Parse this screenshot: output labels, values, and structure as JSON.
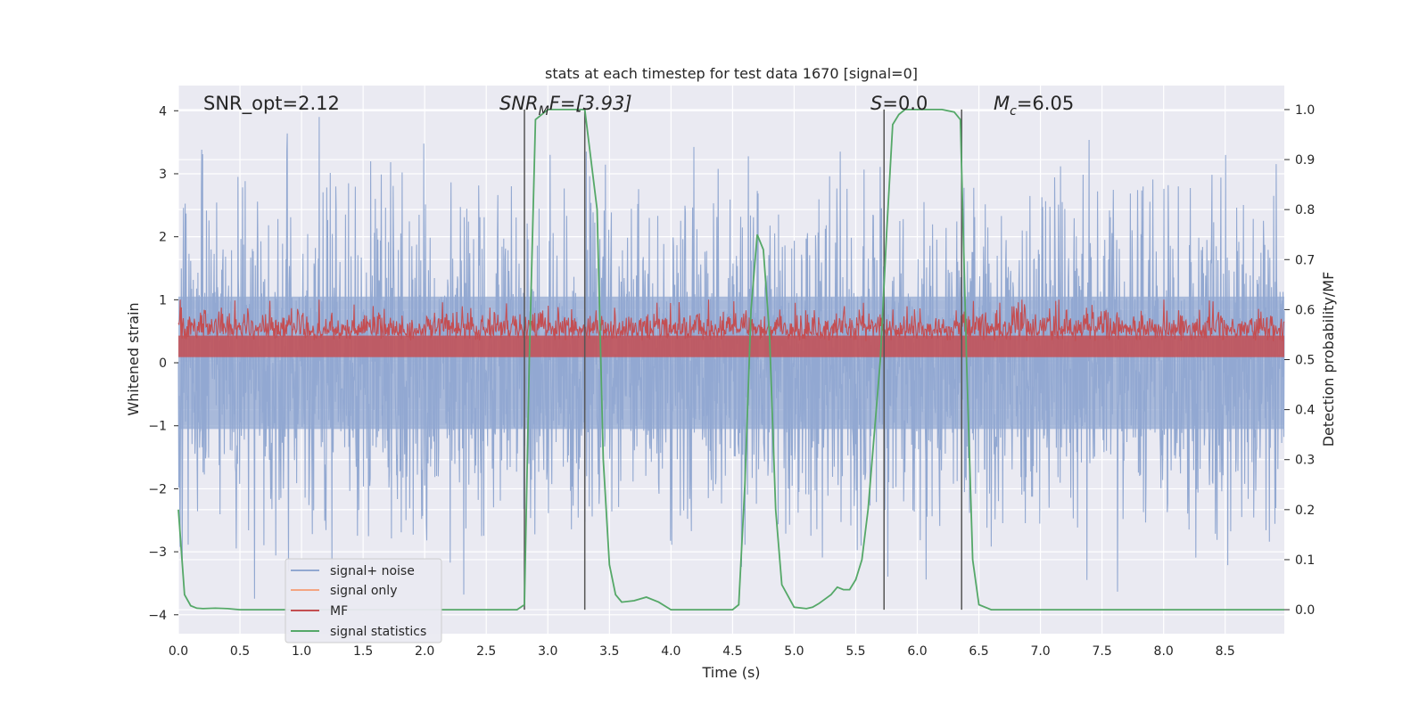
{
  "chart_data": {
    "type": "line",
    "title": "stats at each timestep for test data 1670 [signal=0]",
    "xlabel": "Time (s)",
    "ylabel": "Whitened strain",
    "y2label": "Detection probability/MF",
    "xlim": [
      0.0,
      8.98
    ],
    "ylim": [
      -4.3,
      4.4
    ],
    "y2lim": [
      -0.048,
      1.048
    ],
    "x_ticks": [
      0.0,
      0.5,
      1.0,
      1.5,
      2.0,
      2.5,
      3.0,
      3.5,
      4.0,
      4.5,
      5.0,
      5.5,
      6.0,
      6.5,
      7.0,
      7.5,
      8.0,
      8.5
    ],
    "x_tick_labels": [
      "0.0",
      "0.5",
      "1.0",
      "1.5",
      "2.0",
      "2.5",
      "3.0",
      "3.5",
      "4.0",
      "4.5",
      "5.0",
      "5.5",
      "6.0",
      "6.5",
      "7.0",
      "7.5",
      "8.0",
      "8.5"
    ],
    "y_ticks": [
      -4,
      -3,
      -2,
      -1,
      0,
      1,
      2,
      3,
      4
    ],
    "y_tick_labels": [
      "−4",
      "−3",
      "−2",
      "−1",
      "0",
      "1",
      "2",
      "3",
      "4"
    ],
    "y2_ticks": [
      0.0,
      0.1,
      0.2,
      0.3,
      0.4,
      0.5,
      0.6,
      0.7,
      0.8,
      0.9,
      1.0
    ],
    "y2_tick_labels": [
      "0.0",
      "0.1",
      "0.2",
      "0.3",
      "0.4",
      "0.5",
      "0.6",
      "0.7",
      "0.8",
      "0.9",
      "1.0"
    ],
    "grid": true,
    "legend_placement": "lower-left",
    "annotations": {
      "snr_opt": "SNR_opt=2.12",
      "snr_mf_sym": "SNR",
      "snr_mf_sub": "M",
      "snr_mf_rest": "F=[3.93]",
      "s_sym": "S",
      "s_rest": "=0.0",
      "mc_sym": "M",
      "mc_sub": "c",
      "mc_rest": "=6.05"
    },
    "vertical_markers_s": [
      2.81,
      3.3,
      5.73,
      6.36
    ],
    "series": [
      {
        "name": "signal+ noise",
        "color": "#92a8d1",
        "axis": "left",
        "kind": "noise",
        "x_range": [
          0.0,
          8.98
        ],
        "envelope_min": -3.9,
        "envelope_max": 3.9
      },
      {
        "name": "signal only",
        "color": "#f4a582",
        "axis": "left",
        "kind": "flat",
        "values": []
      },
      {
        "name": "MF",
        "color": "#c44e52",
        "axis": "right",
        "kind": "noise",
        "x_range": [
          0.0,
          8.98
        ],
        "envelope_min": 0.5,
        "envelope_max": 0.62
      },
      {
        "name": "signal statistics",
        "color": "#55a868",
        "axis": "right",
        "kind": "line",
        "x": [
          0.0,
          0.05,
          0.1,
          0.15,
          0.2,
          0.3,
          0.4,
          0.5,
          1.0,
          1.5,
          2.0,
          2.5,
          2.75,
          2.81,
          2.85,
          2.9,
          3.0,
          3.1,
          3.2,
          3.3,
          3.35,
          3.4,
          3.45,
          3.5,
          3.55,
          3.6,
          3.7,
          3.8,
          3.9,
          4.0,
          4.2,
          4.4,
          4.5,
          4.55,
          4.6,
          4.65,
          4.7,
          4.75,
          4.8,
          4.85,
          4.9,
          5.0,
          5.1,
          5.15,
          5.2,
          5.3,
          5.35,
          5.4,
          5.45,
          5.5,
          5.55,
          5.6,
          5.65,
          5.7,
          5.75,
          5.8,
          5.85,
          5.9,
          6.0,
          6.1,
          6.2,
          6.3,
          6.35,
          6.4,
          6.45,
          6.5,
          6.6,
          7.0,
          7.5,
          8.0,
          8.5,
          8.98
        ],
        "values": [
          0.2,
          0.03,
          0.008,
          0.003,
          0.002,
          0.003,
          0.002,
          0.0,
          0.0,
          0.0,
          0.0,
          0.0,
          0.0,
          0.01,
          0.5,
          0.98,
          1.0,
          1.0,
          1.0,
          1.0,
          0.9,
          0.8,
          0.3,
          0.09,
          0.03,
          0.015,
          0.018,
          0.025,
          0.015,
          0.0,
          0.0,
          0.0,
          0.0,
          0.01,
          0.25,
          0.6,
          0.75,
          0.72,
          0.55,
          0.2,
          0.05,
          0.005,
          0.002,
          0.005,
          0.012,
          0.03,
          0.045,
          0.04,
          0.04,
          0.06,
          0.1,
          0.2,
          0.35,
          0.5,
          0.75,
          0.97,
          0.99,
          1.0,
          1.0,
          1.0,
          1.0,
          0.995,
          0.98,
          0.5,
          0.1,
          0.01,
          0.0,
          0.0,
          0.0,
          0.0,
          0.0,
          0.0
        ]
      }
    ]
  }
}
